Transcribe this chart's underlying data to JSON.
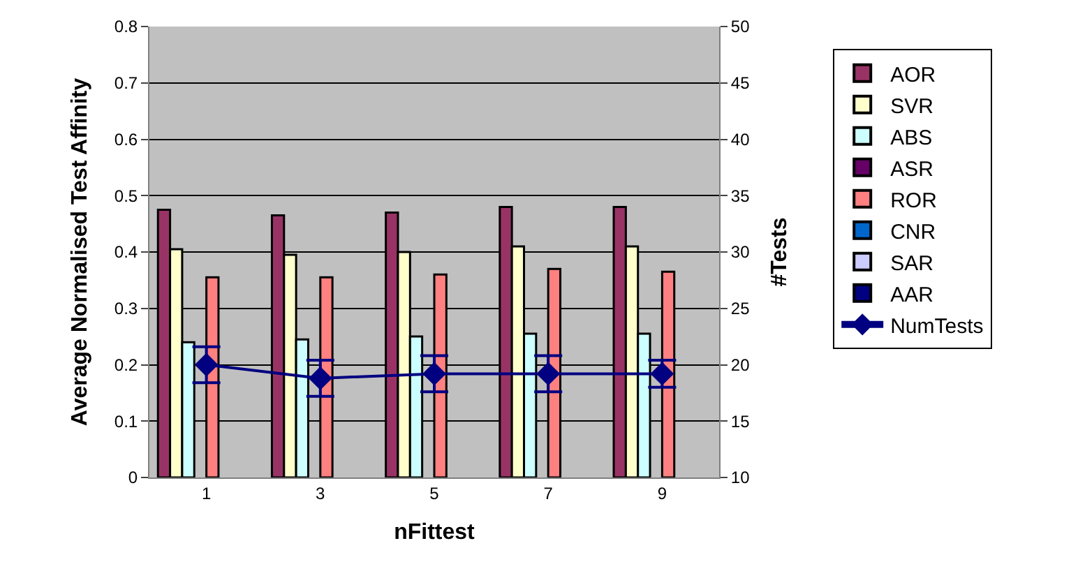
{
  "chart_data": {
    "type": "bar",
    "xlabel": "nFittest",
    "ylabel": "Average Normalised Test Affinity",
    "y2label": "#Tests",
    "categories": [
      "1",
      "3",
      "5",
      "7",
      "9"
    ],
    "series": [
      {
        "name": "AOR",
        "color": "#993366",
        "values": [
          0.475,
          0.465,
          0.47,
          0.48,
          0.48
        ]
      },
      {
        "name": "SVR",
        "color": "#ffffcc",
        "values": [
          0.405,
          0.395,
          0.4,
          0.41,
          0.41
        ]
      },
      {
        "name": "ABS",
        "color": "#ccffff",
        "values": [
          0.24,
          0.245,
          0.25,
          0.255,
          0.255
        ]
      },
      {
        "name": "ASR",
        "color": "#660066",
        "values": [
          null,
          null,
          null,
          null,
          null
        ]
      },
      {
        "name": "ROR",
        "color": "#ff8080",
        "values": [
          0.355,
          0.355,
          0.36,
          0.37,
          0.365
        ]
      },
      {
        "name": "CNR",
        "color": "#0066cc",
        "values": [
          null,
          null,
          null,
          null,
          null
        ]
      },
      {
        "name": "SAR",
        "color": "#ccccff",
        "values": [
          null,
          null,
          null,
          null,
          null
        ]
      },
      {
        "name": "AAR",
        "color": "#000080",
        "values": [
          null,
          null,
          null,
          null,
          null
        ]
      },
      {
        "name": "NumTests",
        "type": "line",
        "axis": "y2",
        "color": "#000080",
        "marker": "diamond",
        "values": [
          20,
          18.8,
          19.2,
          19.2,
          19.2
        ],
        "errors": [
          1.6,
          1.6,
          1.6,
          1.6,
          1.2
        ]
      }
    ],
    "ylim": [
      0,
      0.8
    ],
    "yticks": [
      0,
      0.1,
      0.2,
      0.3,
      0.4,
      0.5,
      0.6,
      0.7,
      0.8
    ],
    "y2lim": [
      10,
      50
    ],
    "y2ticks": [
      10,
      15,
      20,
      25,
      30,
      35,
      40,
      45,
      50
    ],
    "grid": "y",
    "legend": "right"
  }
}
